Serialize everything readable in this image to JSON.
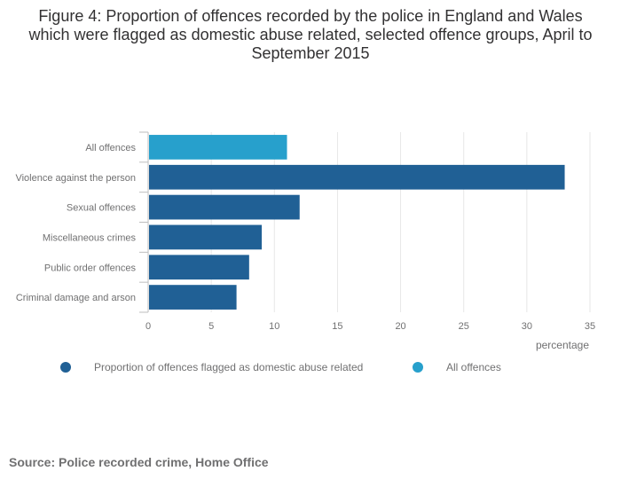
{
  "title": "Figure 4: Proportion of offences recorded by the police in England and Wales which were flagged as domestic abuse related, selected offence groups, April to September 2015",
  "source": "Source: Police recorded crime, Home Office",
  "colors": {
    "series": "#206095",
    "total": "#27a0cc",
    "grid": "#e6e6e6",
    "axis": "#bebebe",
    "text": "#707071"
  },
  "chart_data": {
    "type": "bar",
    "orientation": "horizontal",
    "categories": [
      "All offences",
      "Violence against the person",
      "Sexual offences",
      "Miscellaneous crimes",
      "Public order offences",
      "Criminal damage and arson"
    ],
    "values": [
      11,
      33,
      12,
      9,
      8,
      7
    ],
    "highlight_category": "All offences",
    "xlabel": "percentage",
    "xlim": [
      0,
      35
    ],
    "xticks": [
      0,
      5,
      10,
      15,
      20,
      25,
      30,
      35
    ],
    "grid": true,
    "legend_position": "bottom",
    "legend": [
      {
        "name": "Proportion of offences flagged as domestic abuse related",
        "color": "#206095"
      },
      {
        "name": "All offences",
        "color": "#27a0cc"
      }
    ]
  }
}
